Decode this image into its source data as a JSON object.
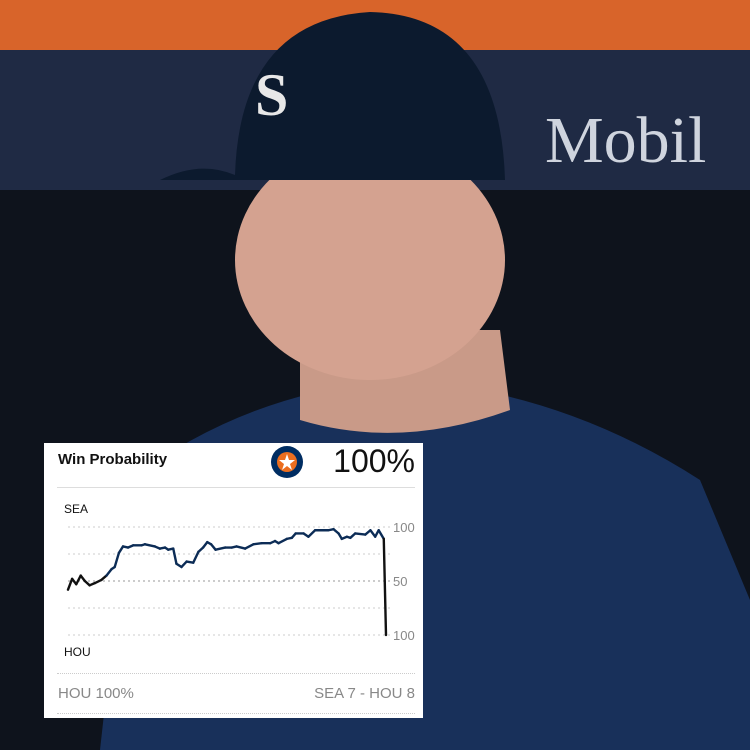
{
  "background": {
    "banner_text": "Mobil",
    "colors": {
      "orange": "#d8642a",
      "banner": "#1f2a44",
      "cap": "#0c1a2e",
      "jersey": "#18305a"
    }
  },
  "card": {
    "title": "Win Probability",
    "team_logo": "houston-astros-logo",
    "team_probability": "100%",
    "footer_left": "HOU 100%",
    "footer_right": "SEA 7  - HOU 8"
  },
  "chart_data": {
    "type": "line",
    "top_label": "SEA",
    "bottom_label": "HOU",
    "y_ticks": [
      "100",
      "50",
      "100"
    ],
    "ylim": [
      0,
      100
    ],
    "grid": true,
    "colors": {
      "sea": "#0c2c56",
      "neutral": "#111111"
    },
    "x": [
      0,
      1.3,
      2.6,
      4,
      5.3,
      6.8,
      8.4,
      10.5,
      12.1,
      13.7,
      14.7,
      16,
      17.3,
      18.9,
      20.5,
      23.1,
      24.2,
      27.3,
      28.9,
      30.5,
      31.5,
      33.1,
      34.1,
      35.7,
      37.3,
      39.4,
      41,
      42.5,
      43.8,
      45,
      46.4,
      49.4,
      51.5,
      53,
      55.7,
      58.3,
      60.9,
      63.6,
      65.1,
      66.2,
      68.8,
      70.4,
      71.6,
      74.1,
      75.6,
      77.7,
      81.9,
      83.5,
      85.1,
      86.1,
      87.7,
      88.8,
      90.3,
      93.5,
      95.1,
      96.6,
      97.7,
      99.3,
      100
    ],
    "values": [
      42,
      52,
      47,
      55,
      50,
      46,
      48,
      51,
      55,
      61,
      63,
      76,
      82,
      81,
      83,
      83,
      84,
      82,
      80,
      81,
      79,
      80,
      66,
      63,
      68,
      67,
      77,
      81,
      86,
      84,
      79,
      81,
      81,
      82,
      80,
      84,
      85,
      85,
      87,
      85,
      89,
      90,
      94,
      94,
      91,
      97,
      97,
      98,
      94,
      89,
      91,
      90,
      94,
      93,
      97,
      91,
      97,
      89,
      0
    ]
  }
}
